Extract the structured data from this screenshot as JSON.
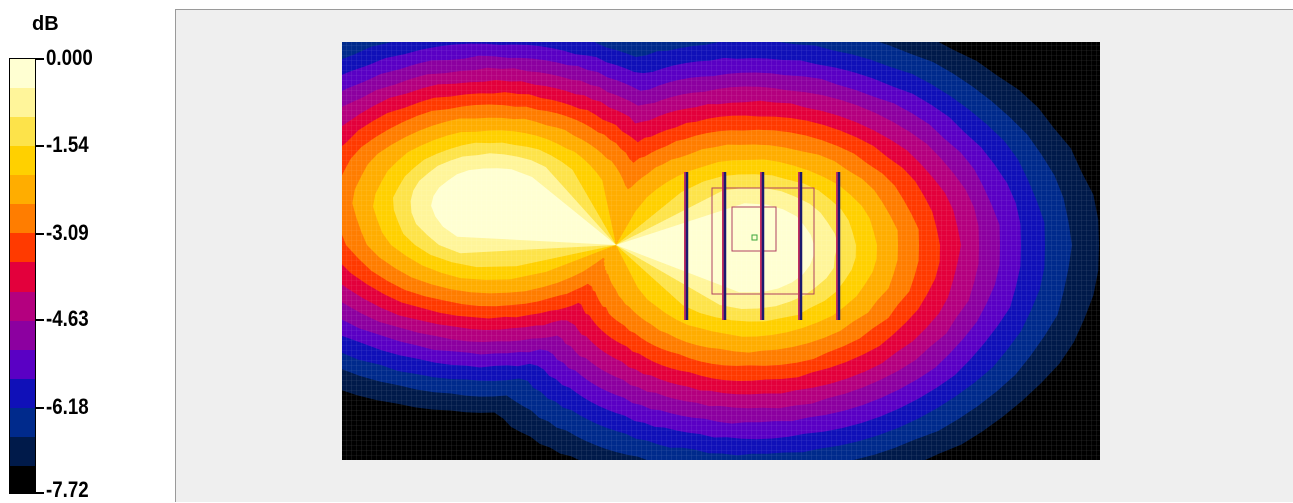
{
  "chart_data": {
    "type": "heatmap",
    "unit_label": "dB",
    "colorbar": {
      "min": -7.72,
      "max": 0.0,
      "tick_labels": [
        "0.000",
        "-1.54",
        "-3.09",
        "-4.63",
        "-6.18",
        "-7.72"
      ],
      "tick_values": [
        0.0,
        -1.54,
        -3.09,
        -4.63,
        -6.18,
        -7.72
      ],
      "colors": [
        "#ffffd2",
        "#fff59a",
        "#fde34a",
        "#ffd000",
        "#ffad00",
        "#ff7d00",
        "#ff3a00",
        "#e3003c",
        "#b4007f",
        "#8c00a0",
        "#5a00c4",
        "#1010b8",
        "#002a8c",
        "#001a4a",
        "#000000"
      ]
    },
    "background_color": "#000000",
    "mesh": "grid",
    "hotspots": [
      {
        "name": "left lobe",
        "peak_db": 0.0
      },
      {
        "name": "right lobe",
        "peak_db": -0.5
      }
    ],
    "probe": {
      "element_count": 5,
      "element_color": "#1a1a6e"
    }
  }
}
